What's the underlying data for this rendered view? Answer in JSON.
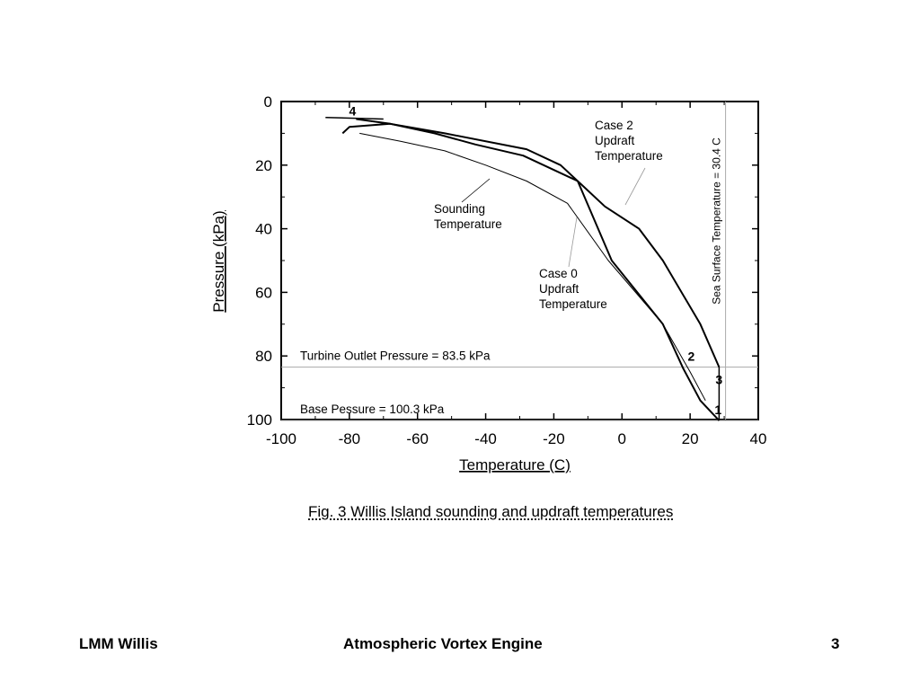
{
  "chart_data": {
    "type": "line",
    "xlabel": "Temperature (C)",
    "ylabel": "Pressure (kPa)",
    "xlim": [
      -100,
      40
    ],
    "ylim": [
      100,
      0
    ],
    "y_inverted": true,
    "x_ticks": [
      "-100",
      "-80",
      "-60",
      "-40",
      "-20",
      "0",
      "20",
      "40"
    ],
    "y_ticks": [
      "0",
      "20",
      "40",
      "60",
      "80",
      "100"
    ],
    "grid": false,
    "series": [
      {
        "name": "Sounding Temperature",
        "x": [
          -77,
          -65,
          -52,
          -40,
          -28,
          -16,
          -4,
          12,
          20,
          24.5
        ],
        "y": [
          10,
          12.5,
          15.5,
          20,
          25,
          32,
          50,
          70,
          85,
          94
        ]
      },
      {
        "name": "Case 0 Updraft Temperature",
        "x": [
          -78,
          -68,
          -55,
          -43,
          -29,
          -13,
          -3,
          12,
          18,
          23,
          28.5
        ],
        "y": [
          5.5,
          7,
          10,
          13.5,
          17,
          25,
          50,
          70,
          84,
          94,
          100.3
        ]
      },
      {
        "name": "Case 2 Updraft Temperature",
        "x": [
          -82,
          -80,
          -68,
          -52,
          -28,
          -18,
          -11,
          -5,
          5,
          12,
          23,
          28.5
        ],
        "y": [
          10,
          8,
          7,
          10,
          15,
          20,
          27,
          33,
          40,
          50,
          70,
          83.5
        ]
      }
    ],
    "reference_lines": [
      {
        "label": "Turbine Outlet Pressure = 83.5 kPa",
        "orientation": "horizontal",
        "value": 83.5
      },
      {
        "label": "Base Pessure = 100.3 kPa",
        "orientation": "horizontal",
        "value": 100.3
      },
      {
        "label": "Sea Surface Temperature = 30.4 C",
        "orientation": "vertical",
        "value": 30.4
      }
    ],
    "annotations": [
      {
        "text": "Sounding\nTemperature"
      },
      {
        "text": "Case 0\nUpdraft\nTemperature"
      },
      {
        "text": "Case 2\nUpdraft\nTemperature"
      }
    ],
    "point_labels": [
      {
        "text": "1",
        "x": 28.5,
        "y": 100.3
      },
      {
        "text": "2",
        "x": 23,
        "y": 84
      },
      {
        "text": "3",
        "x": 28.5,
        "y": 83.5
      },
      {
        "text": "4",
        "x": -78,
        "y": 5.5
      }
    ]
  },
  "caption": "Fig. 3 Willis Island sounding and updraft temperatures",
  "footer": {
    "left": "LMM Willis",
    "center": "Atmospheric Vortex Engine",
    "right": "3"
  }
}
